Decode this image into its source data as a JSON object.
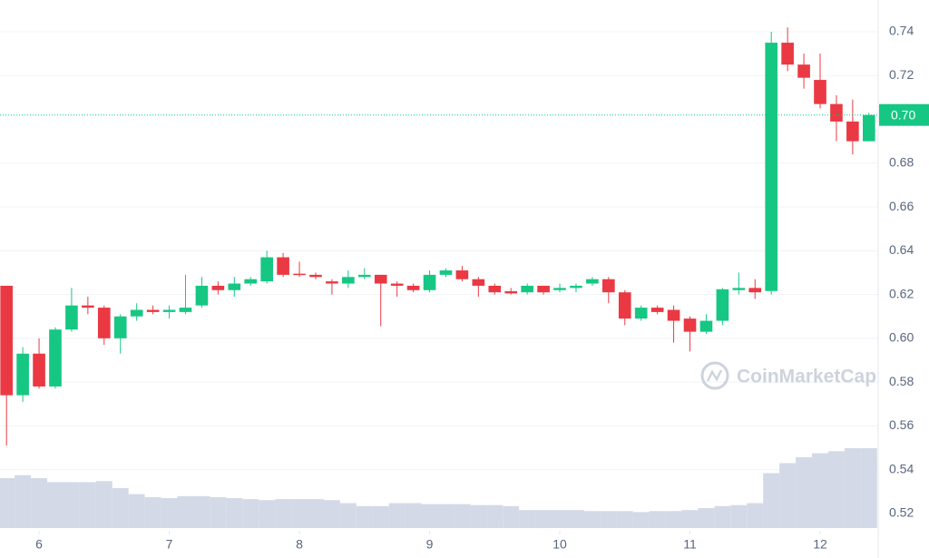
{
  "chart_data": {
    "type": "candlestick",
    "watermark": "CoinMarketCap",
    "x": [
      5.75,
      5.875,
      6,
      6.125,
      6.25,
      6.375,
      6.5,
      6.625,
      6.75,
      6.875,
      7,
      7.125,
      7.25,
      7.375,
      7.5,
      7.625,
      7.75,
      7.875,
      8,
      8.125,
      8.25,
      8.375,
      8.5,
      8.625,
      8.75,
      8.875,
      9,
      9.125,
      9.25,
      9.375,
      9.5,
      9.625,
      9.75,
      9.875,
      10,
      10.125,
      10.25,
      10.375,
      10.5,
      10.625,
      10.75,
      10.875,
      11,
      11.125,
      11.25,
      11.375,
      11.5,
      11.625,
      11.75,
      11.875,
      12,
      12.125,
      12.25,
      12.375
    ],
    "open": [
      0.624,
      0.574,
      0.593,
      0.578,
      0.604,
      0.615,
      0.614,
      0.6,
      0.61,
      0.613,
      0.612,
      0.612,
      0.615,
      0.624,
      0.622,
      0.625,
      0.626,
      0.637,
      0.6295,
      0.629,
      0.626,
      0.625,
      0.628,
      0.629,
      0.625,
      0.624,
      0.622,
      0.629,
      0.631,
      0.627,
      0.624,
      0.6215,
      0.621,
      0.624,
      0.622,
      0.623,
      0.625,
      0.627,
      0.621,
      0.609,
      0.614,
      0.613,
      0.609,
      0.603,
      0.608,
      0.622,
      0.623,
      0.6216,
      0.735,
      0.725,
      0.718,
      0.707,
      0.699,
      0.69
    ],
    "high": [
      0.624,
      0.596,
      0.6,
      0.605,
      0.623,
      0.619,
      0.615,
      0.611,
      0.616,
      0.615,
      0.615,
      0.629,
      0.628,
      0.626,
      0.628,
      0.628,
      0.64,
      0.639,
      0.635,
      0.63,
      0.627,
      0.631,
      0.632,
      0.629,
      0.626,
      0.625,
      0.631,
      0.632,
      0.633,
      0.628,
      0.625,
      0.623,
      0.625,
      0.624,
      0.625,
      0.625,
      0.628,
      0.628,
      0.622,
      0.615,
      0.615,
      0.615,
      0.61,
      0.611,
      0.623,
      0.63,
      0.627,
      0.74,
      0.742,
      0.73,
      0.73,
      0.711,
      0.709,
      0.703
    ],
    "low": [
      0.551,
      0.571,
      0.577,
      0.577,
      0.603,
      0.611,
      0.597,
      0.593,
      0.608,
      0.611,
      0.609,
      0.611,
      0.614,
      0.62,
      0.619,
      0.624,
      0.625,
      0.628,
      0.628,
      0.627,
      0.62,
      0.623,
      0.627,
      0.6055,
      0.619,
      0.621,
      0.621,
      0.628,
      0.626,
      0.619,
      0.62,
      0.62,
      0.62,
      0.62,
      0.621,
      0.621,
      0.624,
      0.616,
      0.606,
      0.608,
      0.611,
      0.598,
      0.594,
      0.602,
      0.606,
      0.62,
      0.618,
      0.62,
      0.722,
      0.714,
      0.705,
      0.69,
      0.684,
      0.69
    ],
    "close": [
      0.574,
      0.593,
      0.578,
      0.604,
      0.615,
      0.614,
      0.6,
      0.61,
      0.613,
      0.612,
      0.613,
      0.614,
      0.624,
      0.622,
      0.625,
      0.627,
      0.637,
      0.629,
      0.629,
      0.628,
      0.625,
      0.628,
      0.629,
      0.625,
      0.624,
      0.622,
      0.629,
      0.631,
      0.627,
      0.624,
      0.621,
      0.6205,
      0.624,
      0.621,
      0.623,
      0.624,
      0.627,
      0.621,
      0.609,
      0.614,
      0.612,
      0.608,
      0.603,
      0.608,
      0.6224,
      0.623,
      0.621,
      0.735,
      0.725,
      0.719,
      0.707,
      0.699,
      0.69,
      0.702
    ],
    "volume": [
      50,
      53,
      50,
      46,
      46,
      46,
      47,
      40,
      34,
      31,
      30,
      32,
      32,
      31,
      30,
      29,
      28,
      29,
      29,
      29,
      28,
      25,
      22,
      22,
      25,
      25,
      24,
      24,
      24,
      23,
      23,
      22,
      18,
      18,
      18,
      18,
      17,
      17,
      17,
      16,
      17,
      17,
      18,
      20,
      22,
      23,
      25,
      55,
      65,
      71,
      75,
      77,
      80,
      80
    ],
    "up_color": "#16c784",
    "down_color": "#ea3943",
    "volume_color": "#d3d9e6",
    "xlim": [
      5.7,
      12.446
    ],
    "xticks": [
      6,
      7,
      8,
      9,
      10,
      11,
      12
    ],
    "ylim": [
      0.5121,
      0.7545
    ],
    "yticks": [
      0.52,
      0.54,
      0.56,
      0.58,
      {
        "value": 0.6,
        "label": "0.60"
      },
      0.62,
      0.64,
      0.66,
      0.68,
      0.72,
      0.74
    ],
    "price_tag": {
      "value": 0.702,
      "label": "0.70"
    },
    "volume_lim": [
      0,
      100
    ],
    "grid": true
  }
}
